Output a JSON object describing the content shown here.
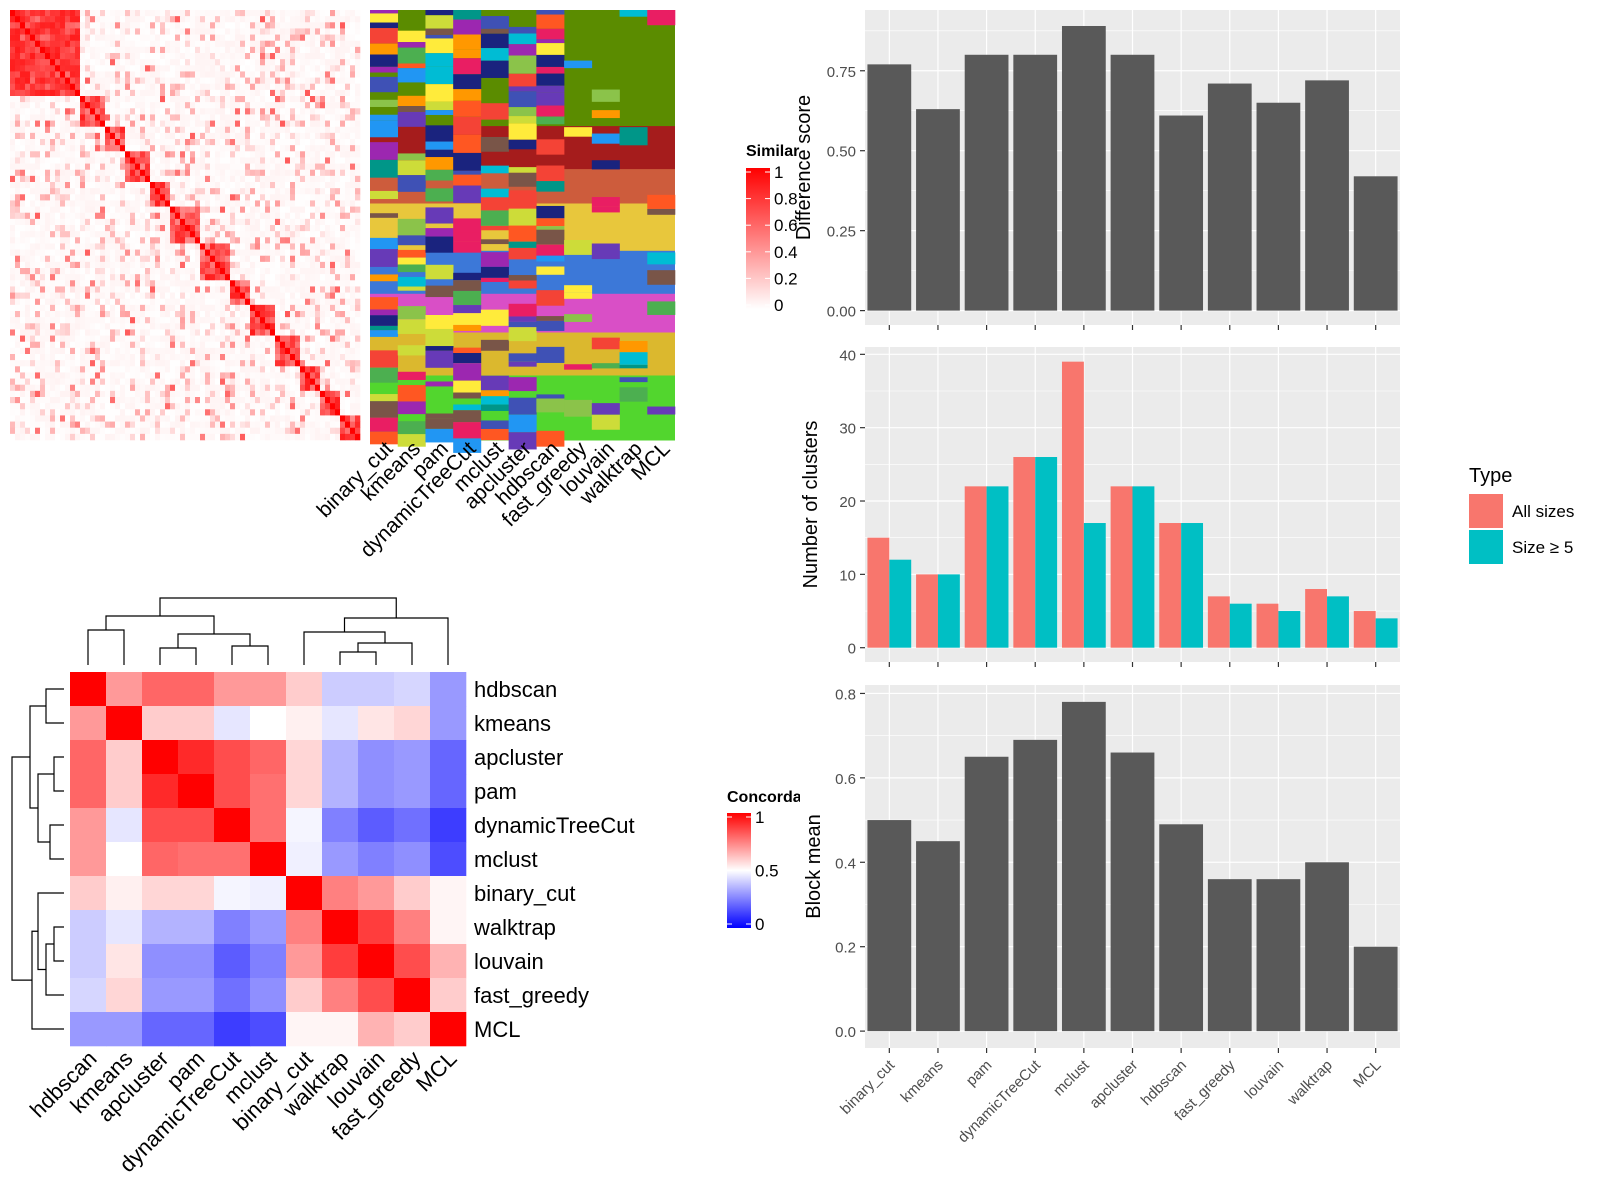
{
  "colors": {
    "bar": "#595959",
    "panel": "#ebebeb",
    "grid": "#ffffff",
    "all_sizes": "#F8766D",
    "size_ge_5": "#00BFC4",
    "sim_high": "#ff0000",
    "conc_low": "#0000ff",
    "conc_mid": "#ffffff",
    "conc_high": "#ff0000"
  },
  "chart_data": [
    {
      "id": "similarity-heatmap",
      "type": "heatmap",
      "legend_title": "Similarity",
      "legend_ticks": [
        "1",
        "0.8",
        "0.6",
        "0.4",
        "0.2",
        "0"
      ],
      "methods": [
        "binary_cut",
        "kmeans",
        "pam",
        "dynamicTreeCut",
        "mclust",
        "apcluster",
        "hdbscan",
        "fast_greedy",
        "louvain",
        "walktrap",
        "MCL"
      ]
    },
    {
      "id": "concordance-heatmap",
      "type": "heatmap",
      "legend_title": "Concordance",
      "legend_ticks": [
        "1",
        "0.5",
        "0"
      ],
      "rows": [
        "hdbscan",
        "kmeans",
        "apcluster",
        "pam",
        "dynamicTreeCut",
        "mclust",
        "binary_cut",
        "walktrap",
        "louvain",
        "fast_greedy",
        "MCL"
      ],
      "cols": [
        "hdbscan",
        "kmeans",
        "apcluster",
        "pam",
        "dynamicTreeCut",
        "mclust",
        "binary_cut",
        "walktrap",
        "louvain",
        "fast_greedy",
        "MCL"
      ],
      "values": [
        [
          1.0,
          0.7,
          0.8,
          0.8,
          0.7,
          0.7,
          0.6,
          0.4,
          0.4,
          0.42,
          0.3
        ],
        [
          0.7,
          1.0,
          0.6,
          0.6,
          0.45,
          0.5,
          0.53,
          0.45,
          0.55,
          0.58,
          0.3
        ],
        [
          0.8,
          0.6,
          1.0,
          0.92,
          0.85,
          0.8,
          0.58,
          0.35,
          0.28,
          0.3,
          0.2
        ],
        [
          0.8,
          0.6,
          0.92,
          1.0,
          0.85,
          0.78,
          0.58,
          0.35,
          0.28,
          0.3,
          0.2
        ],
        [
          0.7,
          0.45,
          0.85,
          0.85,
          1.0,
          0.78,
          0.48,
          0.25,
          0.18,
          0.22,
          0.12
        ],
        [
          0.7,
          0.5,
          0.8,
          0.78,
          0.78,
          1.0,
          0.47,
          0.3,
          0.25,
          0.28,
          0.15
        ],
        [
          0.6,
          0.53,
          0.58,
          0.58,
          0.48,
          0.47,
          1.0,
          0.75,
          0.7,
          0.6,
          0.52
        ],
        [
          0.4,
          0.45,
          0.35,
          0.35,
          0.25,
          0.3,
          0.75,
          1.0,
          0.88,
          0.75,
          0.52
        ],
        [
          0.4,
          0.55,
          0.28,
          0.28,
          0.18,
          0.25,
          0.7,
          0.88,
          1.0,
          0.85,
          0.65
        ],
        [
          0.42,
          0.58,
          0.3,
          0.3,
          0.22,
          0.28,
          0.6,
          0.75,
          0.85,
          1.0,
          0.6
        ],
        [
          0.3,
          0.3,
          0.2,
          0.2,
          0.12,
          0.15,
          0.52,
          0.52,
          0.65,
          0.6,
          1.0
        ]
      ]
    },
    {
      "id": "difference-score",
      "type": "bar",
      "categories": [
        "binary_cut",
        "kmeans",
        "pam",
        "dynamicTreeCut",
        "mclust",
        "apcluster",
        "hdbscan",
        "fast_greedy",
        "louvain",
        "walktrap",
        "MCL"
      ],
      "values": [
        0.77,
        0.63,
        0.8,
        0.8,
        0.89,
        0.8,
        0.61,
        0.71,
        0.65,
        0.72,
        0.42
      ],
      "ylabel": "Difference score",
      "yticks": [
        0.0,
        0.25,
        0.5,
        0.75
      ],
      "ytick_labels": [
        "0.00",
        "0.25",
        "0.50",
        "0.75"
      ],
      "ylim": [
        -0.045,
        0.94
      ]
    },
    {
      "id": "number-of-clusters",
      "type": "bar",
      "categories": [
        "binary_cut",
        "kmeans",
        "pam",
        "dynamicTreeCut",
        "mclust",
        "apcluster",
        "hdbscan",
        "fast_greedy",
        "louvain",
        "walktrap",
        "MCL"
      ],
      "series": [
        {
          "name": "All sizes",
          "values": [
            15,
            10,
            22,
            26,
            39,
            22,
            17,
            7,
            6,
            8,
            5
          ]
        },
        {
          "name": "Size ≥ 5",
          "values": [
            12,
            10,
            22,
            26,
            17,
            22,
            17,
            6,
            5,
            7,
            4
          ]
        }
      ],
      "ylabel": "Number of clusters",
      "yticks": [
        0,
        10,
        20,
        30,
        40
      ],
      "ytick_labels": [
        "0",
        "10",
        "20",
        "30",
        "40"
      ],
      "ylim": [
        -1.95,
        41
      ],
      "legend_title": "Type",
      "legend_position": "right"
    },
    {
      "id": "block-mean",
      "type": "bar",
      "categories": [
        "binary_cut",
        "kmeans",
        "pam",
        "dynamicTreeCut",
        "mclust",
        "apcluster",
        "hdbscan",
        "fast_greedy",
        "louvain",
        "walktrap",
        "MCL"
      ],
      "values": [
        0.5,
        0.45,
        0.65,
        0.69,
        0.78,
        0.66,
        0.49,
        0.36,
        0.36,
        0.4,
        0.2
      ],
      "ylabel": "Block mean",
      "yticks": [
        0.0,
        0.2,
        0.4,
        0.6,
        0.8
      ],
      "ytick_labels": [
        "0.0",
        "0.2",
        "0.4",
        "0.6",
        "0.8"
      ],
      "ylim": [
        -0.04,
        0.82
      ]
    }
  ]
}
